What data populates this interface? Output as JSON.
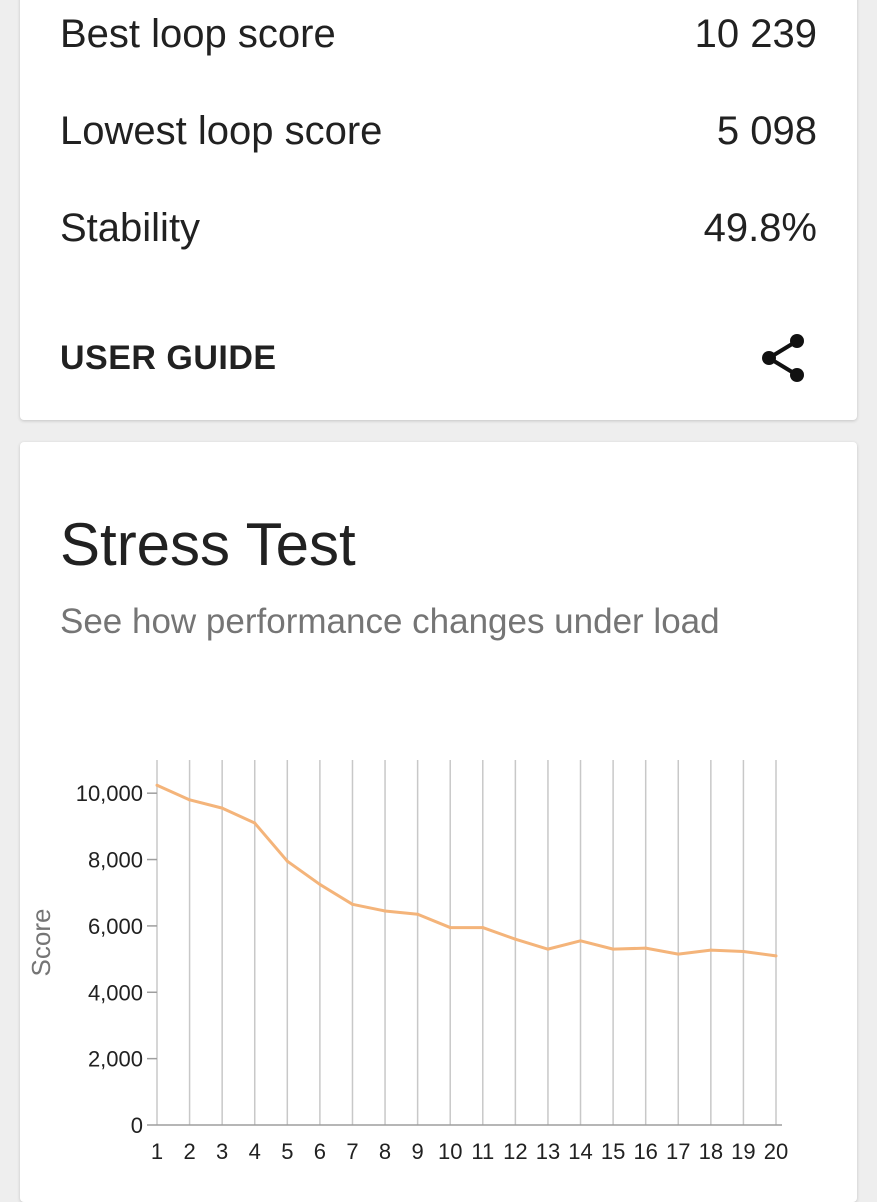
{
  "summary": {
    "rows": [
      {
        "label": "Best loop score",
        "value": "10 239"
      },
      {
        "label": "Lowest loop score",
        "value": "5 098"
      },
      {
        "label": "Stability",
        "value": "49.8%"
      }
    ],
    "user_guide_label": "USER GUIDE",
    "share_icon": "share-icon"
  },
  "stress": {
    "title": "Stress Test",
    "subtitle": "See how performance changes under load"
  },
  "chart_data": {
    "type": "line",
    "ylabel": "Score",
    "xlabel": "",
    "x": [
      1,
      2,
      3,
      4,
      5,
      6,
      7,
      8,
      9,
      10,
      11,
      12,
      13,
      14,
      15,
      16,
      17,
      18,
      19,
      20
    ],
    "series": [
      {
        "values": [
          10239,
          9800,
          9550,
          9100,
          7950,
          7250,
          6650,
          6450,
          6350,
          5950,
          5950,
          5600,
          5300,
          5550,
          5300,
          5330,
          5150,
          5270,
          5230,
          5098
        ]
      }
    ],
    "ylim": [
      0,
      11000
    ],
    "yticks": [
      0,
      2000,
      4000,
      6000,
      8000,
      10000
    ],
    "ytick_labels": [
      "0",
      "2,000",
      "4,000",
      "6,000",
      "8,000",
      "10,000"
    ],
    "grid": "vertical",
    "line_color": "#f4b47a",
    "grid_color": "#c8c8c8"
  }
}
